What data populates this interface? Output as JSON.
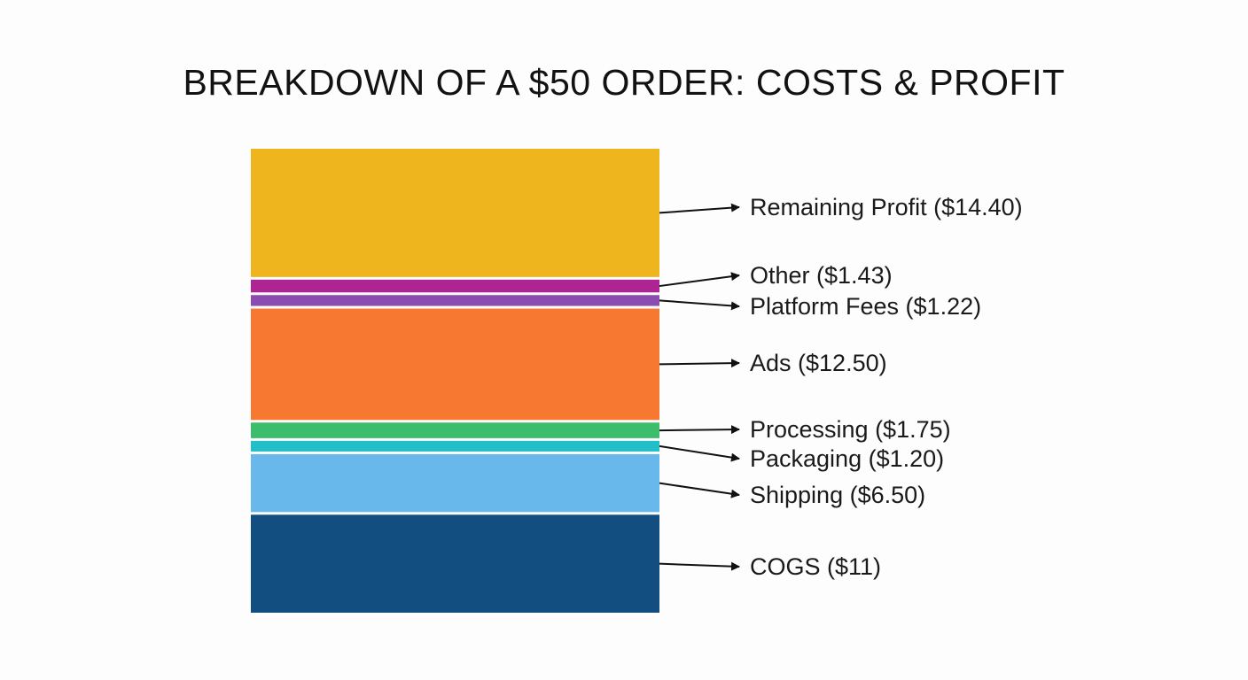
{
  "chart_data": {
    "type": "bar",
    "subtype": "stacked-single-column",
    "title": "BREAKDOWN OF A $50 ORDER: COSTS & PROFIT",
    "total": 50,
    "unit": "$",
    "series": [
      {
        "name": "COGS",
        "value": 11,
        "label": "COGS ($11)",
        "color": "#134e80"
      },
      {
        "name": "Shipping",
        "value": 6.5,
        "label": "Shipping ($6.50)",
        "color": "#68b8ec"
      },
      {
        "name": "Packaging",
        "value": 1.2,
        "label": "Packaging ($1.20)",
        "color": "#22bfc9"
      },
      {
        "name": "Processing",
        "value": 1.75,
        "label": "Processing ($1.75)",
        "color": "#3cbd6b"
      },
      {
        "name": "Ads",
        "value": 12.5,
        "label": "Ads ($12.50)",
        "color": "#f77830"
      },
      {
        "name": "Platform Fees",
        "value": 1.22,
        "label": "Platform Fees ($1.22)",
        "color": "#8b4cb0"
      },
      {
        "name": "Other",
        "value": 1.43,
        "label": "Other ($1.43)",
        "color": "#ad2493"
      },
      {
        "name": "Remaining Profit",
        "value": 14.4,
        "label": "Remaining Profit ($14.40)",
        "color": "#efb51f"
      }
    ],
    "xlabel": "",
    "ylabel": "",
    "grid": false,
    "legend": "right-side-arrows"
  }
}
